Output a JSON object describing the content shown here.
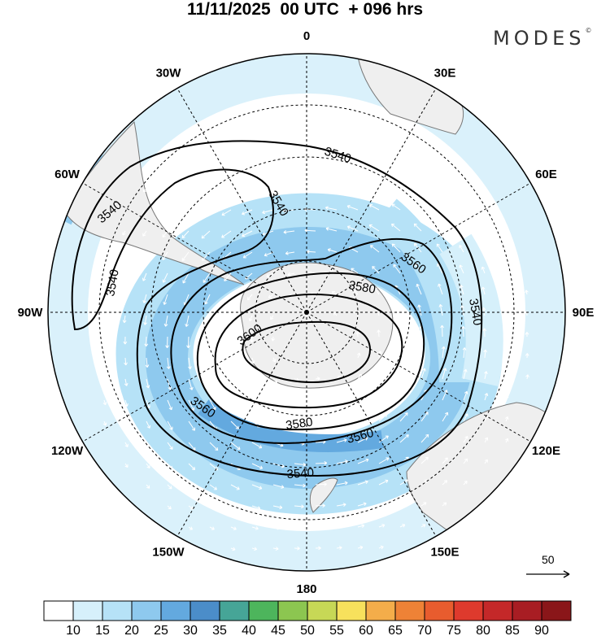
{
  "title": "11/11/2025  00 UTC  + 096 hrs",
  "brand": "MODES",
  "brand_mark": "©",
  "map": {
    "projection": "polar stereographic, south pole centered",
    "longitude_labels": [
      {
        "lon": 0,
        "text": "0"
      },
      {
        "lon": 30,
        "text": "30E"
      },
      {
        "lon": 60,
        "text": "60E"
      },
      {
        "lon": 90,
        "text": "90E"
      },
      {
        "lon": 120,
        "text": "120E"
      },
      {
        "lon": 150,
        "text": "150E"
      },
      {
        "lon": 180,
        "text": "180"
      },
      {
        "lon": -150,
        "text": "150W"
      },
      {
        "lon": -120,
        "text": "120W"
      },
      {
        "lon": -90,
        "text": "90W"
      },
      {
        "lon": -60,
        "text": "60W"
      },
      {
        "lon": -30,
        "text": "30W"
      }
    ],
    "contour_labels": [
      "3540",
      "3540",
      "3540",
      "3540",
      "3540",
      "3540",
      "3560",
      "3560",
      "3560",
      "3580",
      "3580",
      "3600"
    ],
    "reference_vector": {
      "value": "50"
    },
    "colors": {
      "land": "#efefef",
      "grid": "#000000",
      "contour": "#000000",
      "vector": "#ffffff"
    }
  },
  "colorbar": {
    "labels": [
      "10",
      "15",
      "20",
      "25",
      "30",
      "35",
      "40",
      "45",
      "50",
      "55",
      "60",
      "65",
      "70",
      "75",
      "80",
      "85",
      "90"
    ],
    "colors": [
      "#ffffff",
      "#d6f0fb",
      "#b6e2f7",
      "#8ec9ee",
      "#63a9df",
      "#4b8dc9",
      "#46a597",
      "#4db55c",
      "#8cc650",
      "#c7d856",
      "#f7e15c",
      "#f4ad4a",
      "#ee8236",
      "#e85c2e",
      "#de3a2d",
      "#c42829",
      "#a81d23",
      "#8a1619"
    ]
  }
}
